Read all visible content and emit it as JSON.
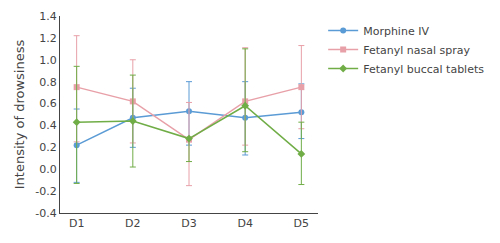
{
  "chart_data": {
    "type": "line",
    "categories": [
      "D1",
      "D2",
      "D3",
      "D4",
      "D5"
    ],
    "series": [
      {
        "name": "Morphine IV",
        "color": "#5b9bd5",
        "marker": "circle",
        "line_style": "solid",
        "values": [
          0.22,
          0.47,
          0.53,
          0.47,
          0.52
        ],
        "error_minus": [
          0.34,
          0.27,
          0.31,
          0.34,
          0.24
        ],
        "error_plus": [
          0.33,
          0.27,
          0.27,
          0.33,
          0.26
        ]
      },
      {
        "name": "Fetanyl nasal spray",
        "color": "#e8a0a8",
        "marker": "square",
        "line_style": "solid",
        "values": [
          0.75,
          0.62,
          0.27,
          0.62,
          0.75
        ],
        "error_minus": [
          0.5,
          0.38,
          0.42,
          0.4,
          0.38
        ],
        "error_plus": [
          0.47,
          0.38,
          0.34,
          0.49,
          0.38
        ]
      },
      {
        "name": "Fetanyl buccal tablets",
        "color": "#70ad47",
        "marker": "diamond",
        "line_style": "solid",
        "values": [
          0.43,
          0.44,
          0.28,
          0.58,
          0.14
        ],
        "error_minus": [
          0.56,
          0.42,
          0.21,
          0.42,
          0.28
        ],
        "error_plus": [
          0.51,
          0.42,
          0.01,
          0.52,
          0.29
        ]
      }
    ],
    "ylabel": "Intensity of drowsiness",
    "ylim": [
      -0.4,
      1.4
    ],
    "yticks": [
      -0.4,
      -0.2,
      {
        "value": 0,
        "label": "0.0"
      },
      0.2,
      0.4,
      0.6,
      0.8,
      {
        "value": 1,
        "label": "1.0"
      },
      1.2,
      1.4
    ],
    "grid": false,
    "legend": "right"
  }
}
